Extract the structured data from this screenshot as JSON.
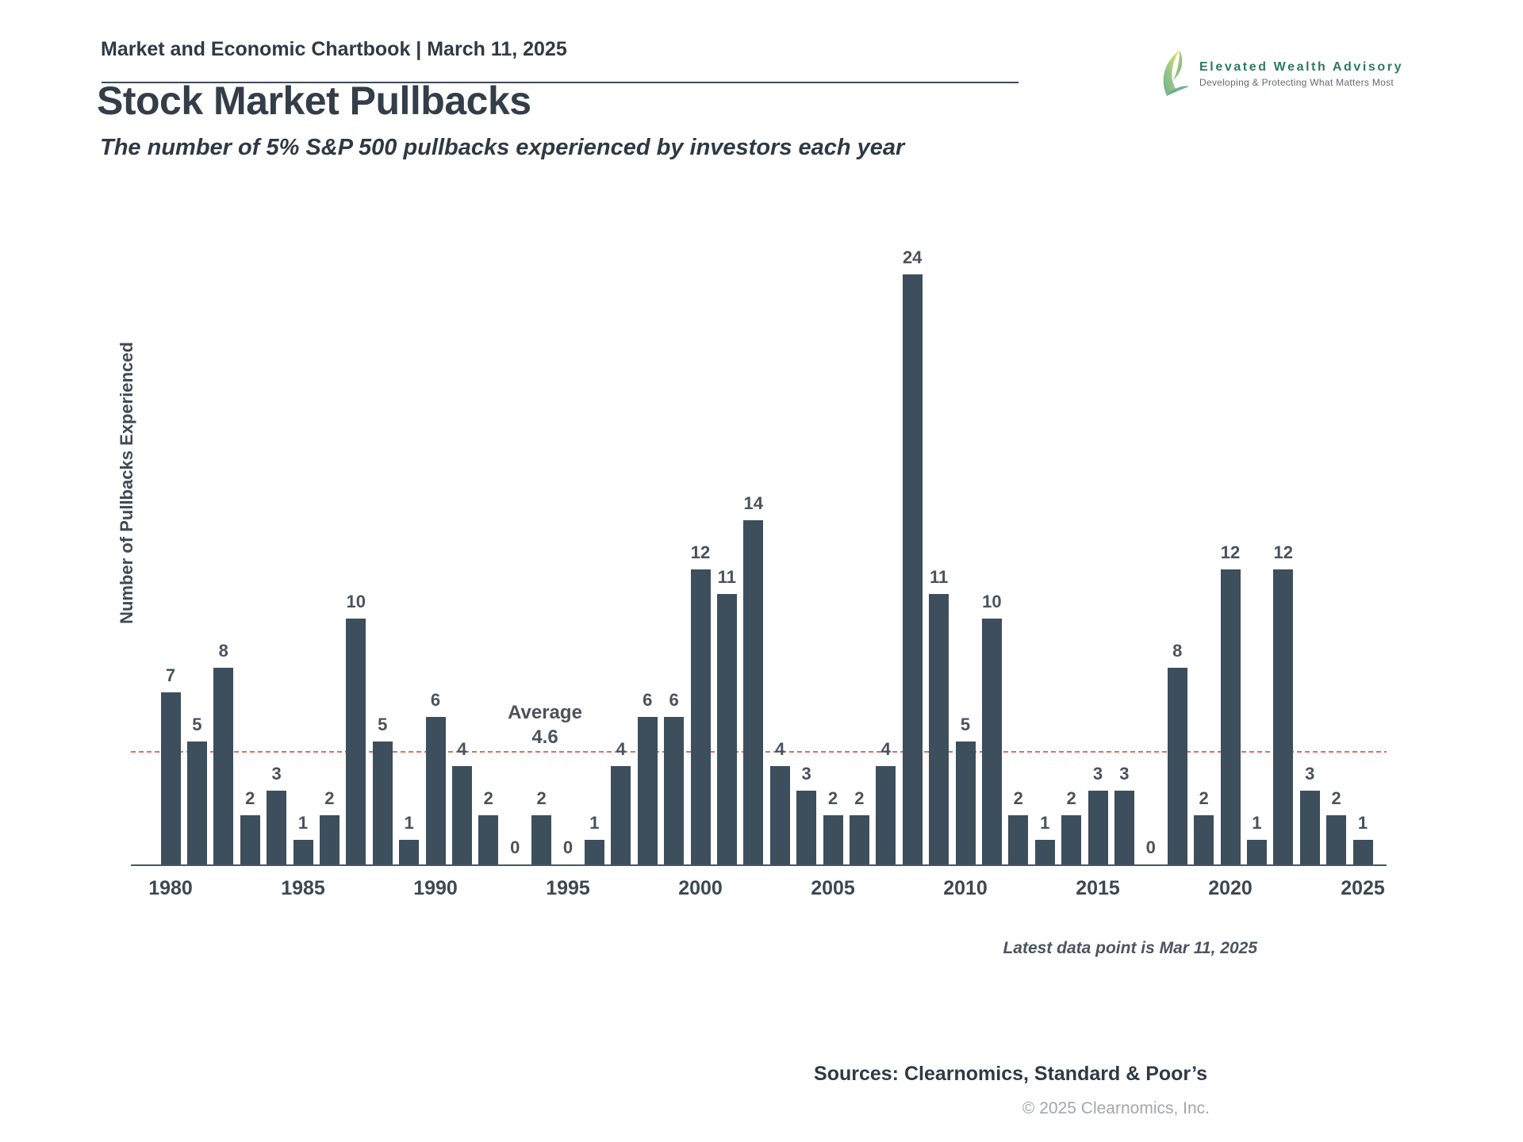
{
  "header": {
    "report_title": "Market and Economic Chartbook | March 11, 2025"
  },
  "logo": {
    "name": "Elevated Wealth Advisory",
    "tagline": "Developing & Protecting What Matters Most"
  },
  "page": {
    "title": "Stock Market Pullbacks",
    "subtitle": "The number of 5% S&P 500 pullbacks experienced by investors each year"
  },
  "chart_data": {
    "type": "bar",
    "title": "Stock Market Pullbacks",
    "xlabel": "",
    "ylabel": "Number of Pullbacks Experienced",
    "categories": [
      1980,
      1981,
      1982,
      1983,
      1984,
      1985,
      1986,
      1987,
      1988,
      1989,
      1990,
      1991,
      1992,
      1993,
      1994,
      1995,
      1996,
      1997,
      1998,
      1999,
      2000,
      2001,
      2002,
      2003,
      2004,
      2005,
      2006,
      2007,
      2008,
      2009,
      2010,
      2011,
      2012,
      2013,
      2014,
      2015,
      2016,
      2017,
      2018,
      2019,
      2020,
      2021,
      2022,
      2023,
      2024,
      2025
    ],
    "values": [
      7,
      5,
      8,
      2,
      3,
      1,
      2,
      10,
      5,
      1,
      6,
      4,
      2,
      0,
      2,
      0,
      1,
      4,
      6,
      6,
      12,
      11,
      14,
      4,
      3,
      2,
      2,
      4,
      24,
      11,
      5,
      10,
      2,
      1,
      2,
      3,
      3,
      0,
      8,
      2,
      12,
      1,
      12,
      3,
      2,
      1
    ],
    "x_tick_labels": [
      "1980",
      "1985",
      "1990",
      "1995",
      "2000",
      "2005",
      "2010",
      "2015",
      "2020",
      "2025"
    ],
    "average": {
      "label": "Average",
      "value": "4.6",
      "numeric": 4.6
    },
    "ylim": [
      0,
      26
    ],
    "grid": false,
    "legend": false,
    "value_labels_shown": true,
    "bar_color": "#3d4e5d",
    "average_line_color": "#dd7066"
  },
  "footnotes": {
    "latest": "Latest data point is Mar 11, 2025",
    "sources": "Sources: Clearnomics, Standard & Poor’s",
    "copyright": "© 2025 Clearnomics, Inc."
  }
}
